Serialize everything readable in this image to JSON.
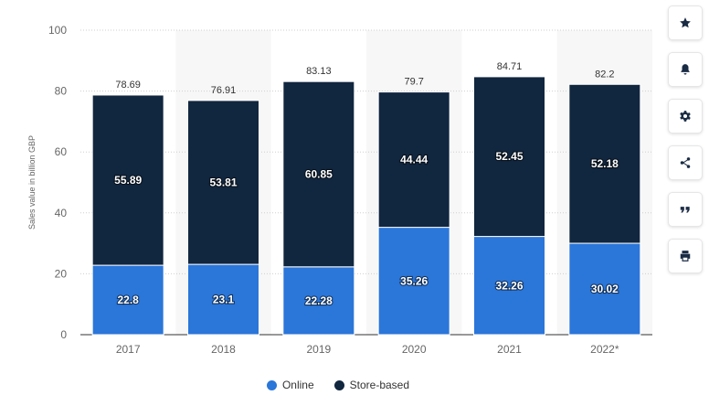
{
  "chart_data": {
    "type": "bar",
    "stacked": true,
    "categories": [
      "2017",
      "2018",
      "2019",
      "2020",
      "2021",
      "2022*"
    ],
    "series": [
      {
        "name": "Online",
        "color": "#2b76d9",
        "values": [
          22.8,
          23.1,
          22.28,
          35.26,
          32.26,
          30.02
        ]
      },
      {
        "name": "Store-based",
        "color": "#11263f",
        "values": [
          55.89,
          53.81,
          60.85,
          44.44,
          52.45,
          52.18
        ]
      }
    ],
    "totals": [
      "78.69",
      "76.91",
      "83.13",
      "79.7",
      "84.71",
      "82.2"
    ],
    "ylabel": "Sales value in billion GBP",
    "ylim": [
      0,
      100
    ],
    "yticks": [
      0,
      20,
      40,
      60,
      80,
      100
    ],
    "grid": true,
    "legend_position": "bottom-center"
  },
  "toolbar": {
    "buttons": [
      {
        "name": "favorite-button",
        "icon": "star-icon"
      },
      {
        "name": "notification-button",
        "icon": "bell-icon"
      },
      {
        "name": "settings-button",
        "icon": "gear-icon"
      },
      {
        "name": "share-button",
        "icon": "share-icon"
      },
      {
        "name": "cite-button",
        "icon": "quote-icon"
      },
      {
        "name": "print-button",
        "icon": "printer-icon"
      }
    ]
  }
}
